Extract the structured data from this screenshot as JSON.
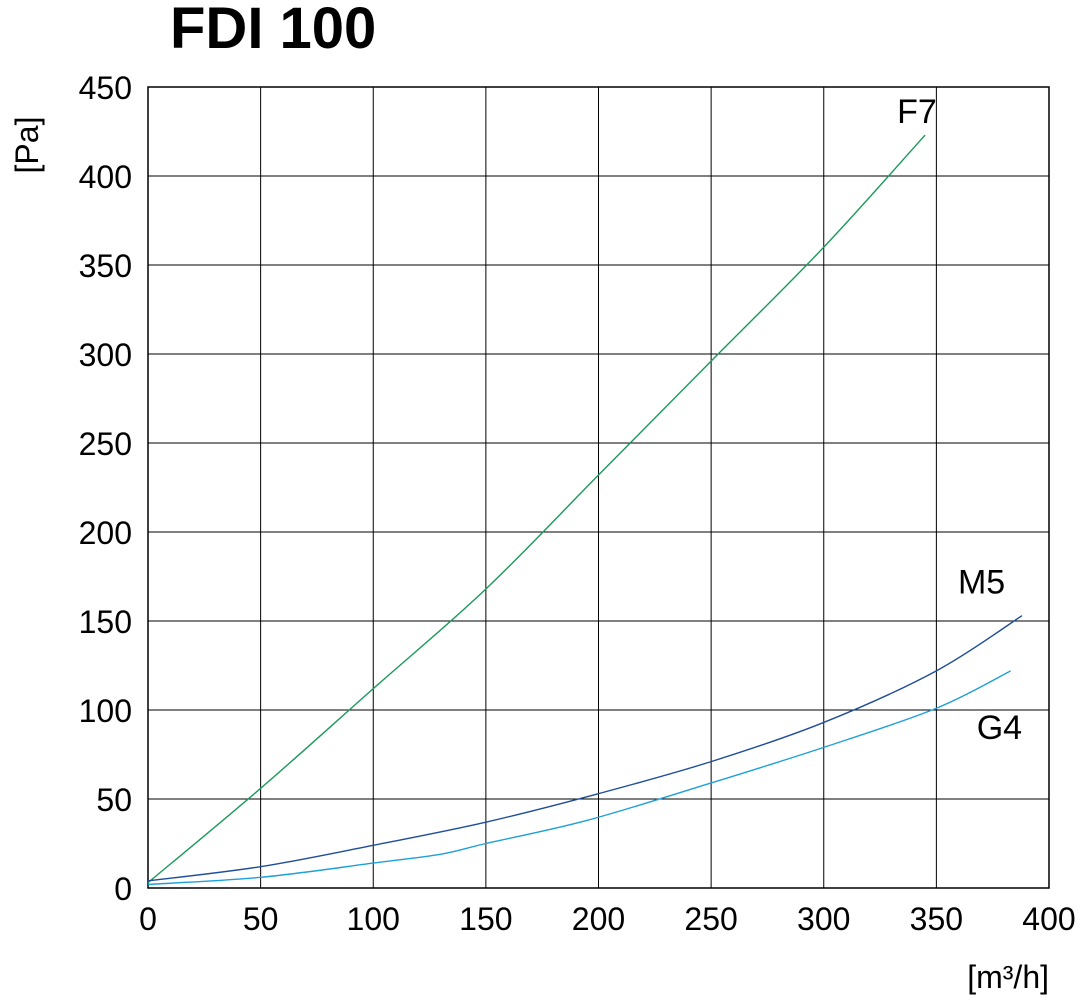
{
  "chart_data": {
    "type": "line",
    "title": "FDI 100",
    "xlabel": "[m³/h]",
    "ylabel": "[Pa]",
    "xlim": [
      0,
      400
    ],
    "ylim": [
      0,
      450
    ],
    "xticks": [
      0,
      50,
      100,
      150,
      200,
      250,
      300,
      350,
      400
    ],
    "yticks": [
      0,
      50,
      100,
      150,
      200,
      250,
      300,
      350,
      400,
      450
    ],
    "grid": true,
    "series": [
      {
        "name": "F7",
        "color": "#1a9a5a",
        "x": [
          0,
          50,
          100,
          150,
          200,
          250,
          300,
          345
        ],
        "y": [
          3,
          56,
          112,
          168,
          232,
          296,
          360,
          423
        ]
      },
      {
        "name": "M5",
        "color": "#1f4e99",
        "x": [
          0,
          50,
          100,
          150,
          200,
          250,
          300,
          350,
          388
        ],
        "y": [
          4,
          12,
          24,
          37,
          53,
          71,
          93,
          122,
          153
        ]
      },
      {
        "name": "G4",
        "color": "#1ea0d8",
        "x": [
          0,
          50,
          100,
          130,
          150,
          195,
          250,
          300,
          350,
          383
        ],
        "y": [
          2,
          6,
          14,
          19,
          25,
          38,
          59,
          79,
          101,
          122
        ]
      }
    ]
  }
}
